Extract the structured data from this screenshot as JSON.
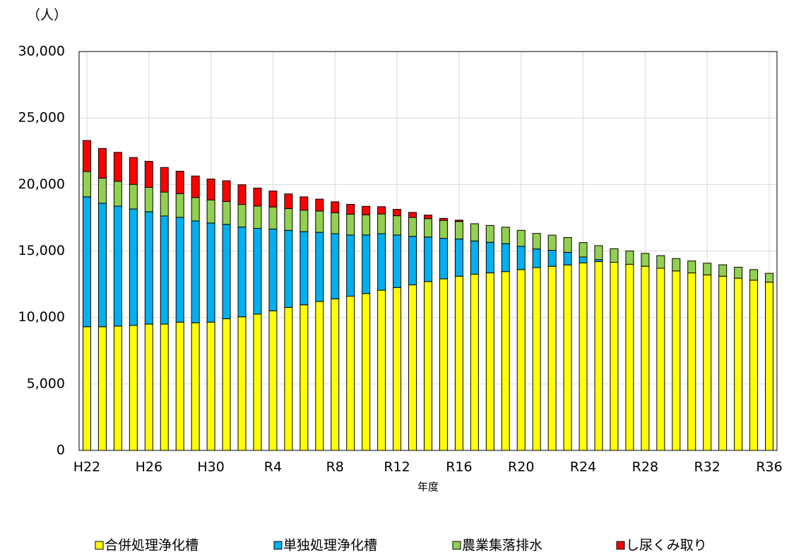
{
  "chart_data": {
    "type": "stacked_bar",
    "y_unit": "（人）",
    "x_label": "年度",
    "categories": [
      "H22",
      null,
      null,
      null,
      "H26",
      null,
      null,
      null,
      "H30",
      null,
      null,
      null,
      "R4",
      null,
      null,
      null,
      "R8",
      null,
      null,
      null,
      "R12",
      null,
      null,
      null,
      "R16",
      null,
      null,
      null,
      "R20",
      null,
      null,
      null,
      "R24",
      null,
      null,
      null,
      "R28",
      null,
      null,
      null,
      "R32",
      null,
      null,
      null,
      "R36"
    ],
    "series": [
      {
        "name": "合併処理浄化槽",
        "color": "#ffff00",
        "values": [
          9300,
          9300,
          9350,
          9400,
          9500,
          9500,
          9650,
          9600,
          9650,
          9900,
          10050,
          10250,
          10500,
          10750,
          10950,
          11200,
          11400,
          11600,
          11800,
          12050,
          12250,
          12450,
          12700,
          12900,
          13100,
          13250,
          13350,
          13450,
          13600,
          13750,
          13850,
          13950,
          14100,
          14200,
          14150,
          14000,
          13850,
          13700,
          13500,
          13350,
          13200,
          13100,
          12950,
          12800,
          12650
        ]
      },
      {
        "name": "単独処理浄化槽",
        "color": "#00b0f0",
        "values": [
          9770,
          9290,
          9020,
          8760,
          8450,
          8130,
          7880,
          7660,
          7450,
          7100,
          6750,
          6450,
          6150,
          5800,
          5500,
          5200,
          4900,
          4600,
          4400,
          4250,
          3950,
          3650,
          3350,
          3050,
          2800,
          2500,
          2300,
          2100,
          1750,
          1400,
          1200,
          950,
          450,
          150,
          0,
          0,
          0,
          0,
          0,
          0,
          0,
          0,
          0,
          0,
          0
        ]
      },
      {
        "name": "農業集落排水",
        "color": "#92d050",
        "values": [
          1910,
          1890,
          1870,
          1850,
          1830,
          1800,
          1780,
          1760,
          1740,
          1720,
          1700,
          1680,
          1660,
          1640,
          1620,
          1600,
          1580,
          1560,
          1520,
          1480,
          1450,
          1420,
          1380,
          1350,
          1320,
          1300,
          1270,
          1240,
          1200,
          1170,
          1140,
          1110,
          1080,
          1050,
          1020,
          1000,
          970,
          950,
          930,
          900,
          880,
          860,
          830,
          800,
          670
        ]
      },
      {
        "name": "し尿くみ取り",
        "color": "#ff0000",
        "values": [
          2330,
          2230,
          2180,
          2020,
          1960,
          1850,
          1690,
          1620,
          1570,
          1560,
          1480,
          1350,
          1200,
          1100,
          1000,
          900,
          820,
          750,
          640,
          550,
          480,
          380,
          270,
          150,
          100,
          0,
          0,
          0,
          0,
          0,
          0,
          0,
          0,
          0,
          0,
          0,
          0,
          0,
          0,
          0,
          0,
          0,
          0,
          0,
          0
        ]
      }
    ],
    "ylim": [
      0,
      30000
    ],
    "yticks": [
      0,
      {
        "value": 5000,
        "label": "5,000"
      },
      {
        "value": 10000,
        "label": "10,000"
      },
      {
        "value": 15000,
        "label": "15,000"
      },
      {
        "value": 20000,
        "label": "20,000"
      },
      {
        "value": 25000,
        "label": "25,000"
      },
      {
        "value": 30000,
        "label": "30,000"
      }
    ],
    "grid": true,
    "legend": "bottom"
  }
}
